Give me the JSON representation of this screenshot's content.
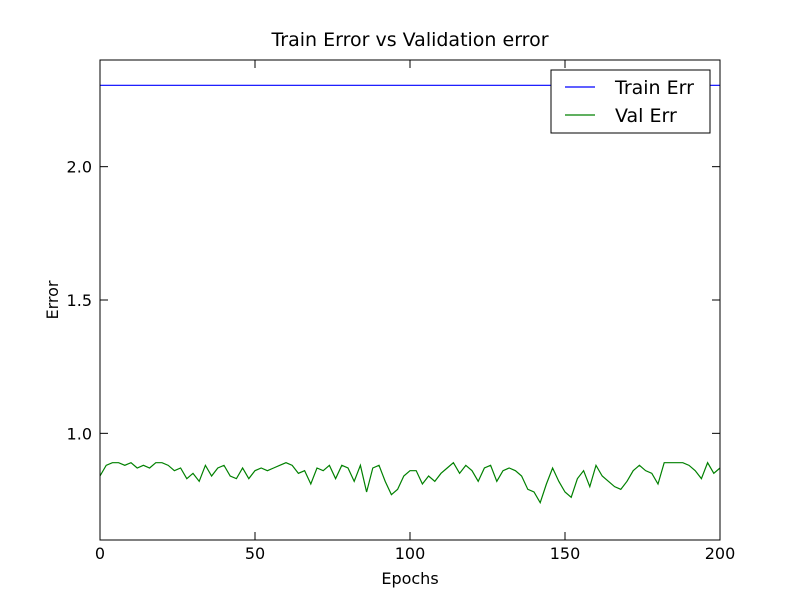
{
  "chart_data": {
    "type": "line",
    "title": "Train Error vs Validation error",
    "xlabel": "Epochs",
    "ylabel": "Error",
    "x": [
      0,
      2,
      4,
      6,
      8,
      10,
      12,
      14,
      16,
      18,
      20,
      22,
      24,
      26,
      28,
      30,
      32,
      34,
      36,
      38,
      40,
      42,
      44,
      46,
      48,
      50,
      52,
      54,
      56,
      58,
      60,
      62,
      64,
      66,
      68,
      70,
      72,
      74,
      76,
      78,
      80,
      82,
      84,
      86,
      88,
      90,
      92,
      94,
      96,
      98,
      100,
      102,
      104,
      106,
      108,
      110,
      112,
      114,
      116,
      118,
      120,
      122,
      124,
      126,
      128,
      130,
      132,
      134,
      136,
      138,
      140,
      142,
      144,
      146,
      148,
      150,
      152,
      154,
      156,
      158,
      160,
      162,
      164,
      166,
      168,
      170,
      172,
      174,
      176,
      178,
      180,
      182,
      184,
      186,
      188,
      190,
      192,
      194,
      196,
      198,
      200
    ],
    "series": [
      {
        "name": "Train Err",
        "color": "#0000ff",
        "values": [
          2.305,
          2.305,
          2.305,
          2.305,
          2.305,
          2.305,
          2.305,
          2.305,
          2.305,
          2.305,
          2.305,
          2.305,
          2.305,
          2.305,
          2.305,
          2.305,
          2.305,
          2.305,
          2.305,
          2.305,
          2.305,
          2.305,
          2.305,
          2.305,
          2.305,
          2.305,
          2.305,
          2.305,
          2.305,
          2.305,
          2.305,
          2.305,
          2.305,
          2.305,
          2.305,
          2.305,
          2.305,
          2.305,
          2.305,
          2.305,
          2.305,
          2.305,
          2.305,
          2.305,
          2.305,
          2.305,
          2.305,
          2.305,
          2.305,
          2.305,
          2.305,
          2.305,
          2.305,
          2.305,
          2.305,
          2.305,
          2.305,
          2.305,
          2.305,
          2.305,
          2.305,
          2.305,
          2.305,
          2.305,
          2.305,
          2.305,
          2.305,
          2.305,
          2.305,
          2.305,
          2.305,
          2.305,
          2.305,
          2.305,
          2.305,
          2.305,
          2.305,
          2.305,
          2.305,
          2.305,
          2.305,
          2.305,
          2.305,
          2.305,
          2.305,
          2.305,
          2.305,
          2.305,
          2.305,
          2.305,
          2.305,
          2.305,
          2.305,
          2.305,
          2.305,
          2.305,
          2.305,
          2.305,
          2.305,
          2.305,
          2.305
        ]
      },
      {
        "name": "Val Err",
        "color": "#008000",
        "values": [
          0.84,
          0.88,
          0.89,
          0.89,
          0.88,
          0.89,
          0.87,
          0.88,
          0.87,
          0.89,
          0.89,
          0.88,
          0.86,
          0.87,
          0.83,
          0.85,
          0.82,
          0.88,
          0.84,
          0.87,
          0.88,
          0.84,
          0.83,
          0.87,
          0.83,
          0.86,
          0.87,
          0.86,
          0.87,
          0.88,
          0.89,
          0.88,
          0.85,
          0.86,
          0.81,
          0.87,
          0.86,
          0.88,
          0.83,
          0.88,
          0.87,
          0.82,
          0.88,
          0.78,
          0.87,
          0.88,
          0.82,
          0.77,
          0.79,
          0.84,
          0.86,
          0.86,
          0.81,
          0.84,
          0.82,
          0.85,
          0.87,
          0.89,
          0.85,
          0.88,
          0.86,
          0.82,
          0.87,
          0.88,
          0.82,
          0.86,
          0.87,
          0.86,
          0.84,
          0.79,
          0.78,
          0.74,
          0.81,
          0.87,
          0.82,
          0.78,
          0.76,
          0.83,
          0.86,
          0.8,
          0.88,
          0.84,
          0.82,
          0.8,
          0.79,
          0.82,
          0.86,
          0.88,
          0.86,
          0.85,
          0.81,
          0.89,
          0.89,
          0.89,
          0.89,
          0.88,
          0.86,
          0.83,
          0.89,
          0.85,
          0.87
        ]
      }
    ],
    "xlim": [
      0,
      200
    ],
    "xticks": [
      0,
      50,
      100,
      150,
      200
    ],
    "ylim": [
      0.6,
      2.4
    ],
    "yticks": [
      {
        "value": 1,
        "label": "1.0"
      },
      1.5,
      {
        "value": 2,
        "label": "2.0"
      }
    ],
    "grid": false,
    "legend": "upper right"
  }
}
